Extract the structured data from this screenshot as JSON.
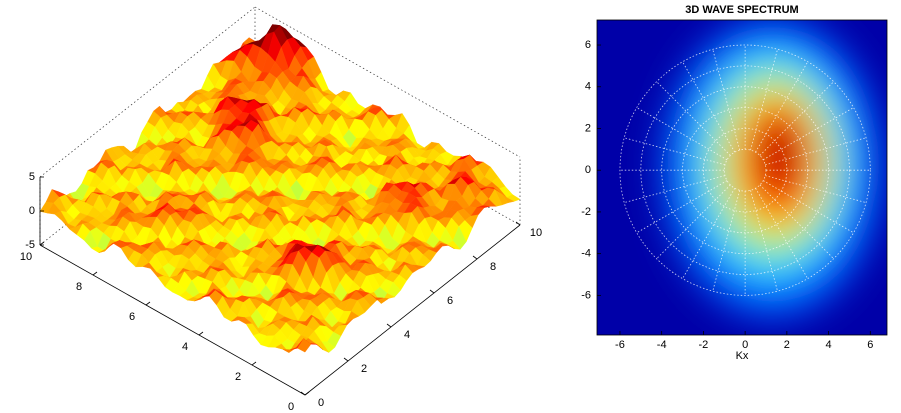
{
  "chart_data": [
    {
      "type": "surface",
      "xlim": [
        0,
        10
      ],
      "xticks": [
        0,
        2,
        4,
        6,
        8,
        10
      ],
      "ylim": [
        0,
        10
      ],
      "yticks": [
        0,
        2,
        4,
        6,
        8,
        10
      ],
      "zlim": [
        -5,
        5
      ],
      "zticks": [
        -5,
        0,
        5
      ],
      "colormap": "jet"
    },
    {
      "type": "heatmap",
      "title": "3D WAVE SPECTRUM",
      "xlabel": "Kx",
      "xlim": [
        -7.1,
        6.8
      ],
      "xticks": [
        -6,
        -4,
        -2,
        0,
        2,
        4,
        6
      ],
      "ylim": [
        -7.9,
        7.2
      ],
      "yticks": [
        -6,
        -4,
        -2,
        0,
        2,
        4,
        6
      ],
      "colormap": "jet",
      "polar_grid": true
    }
  ]
}
